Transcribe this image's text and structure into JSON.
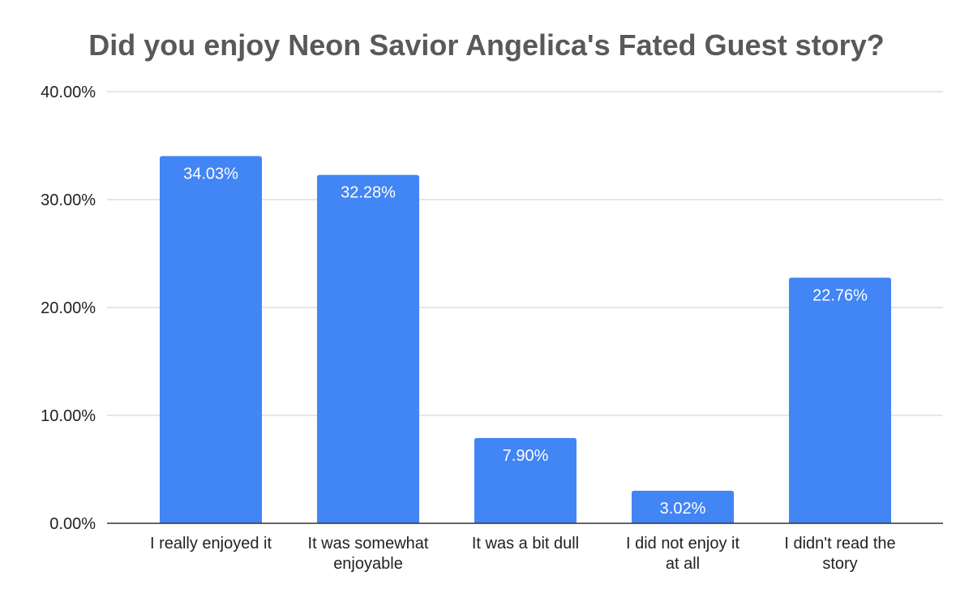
{
  "chart_data": {
    "type": "bar",
    "title": "Did you enjoy Neon Savior Angelica's Fated Guest story?",
    "xlabel": "",
    "ylabel": "",
    "categories": [
      [
        "I really enjoyed it"
      ],
      [
        "It was somewhat",
        "enjoyable"
      ],
      [
        "It was a bit dull"
      ],
      [
        "I did not enjoy it",
        "at all"
      ],
      [
        "I didn't read the",
        "story"
      ]
    ],
    "values": [
      34.03,
      32.28,
      7.9,
      3.02,
      22.76
    ],
    "data_labels": [
      "34.03%",
      "32.28%",
      "7.90%",
      "3.02%",
      "22.76%"
    ],
    "ylim": [
      0,
      40
    ],
    "yticks": [
      0,
      10,
      20,
      30,
      40
    ],
    "ytick_labels": [
      "0.00%",
      "10.00%",
      "20.00%",
      "30.00%",
      "40.00%"
    ],
    "grid": true,
    "legend": "none",
    "colors": {
      "bar": "#4285f4",
      "title": "#595959",
      "grid": "#cccccc"
    }
  }
}
